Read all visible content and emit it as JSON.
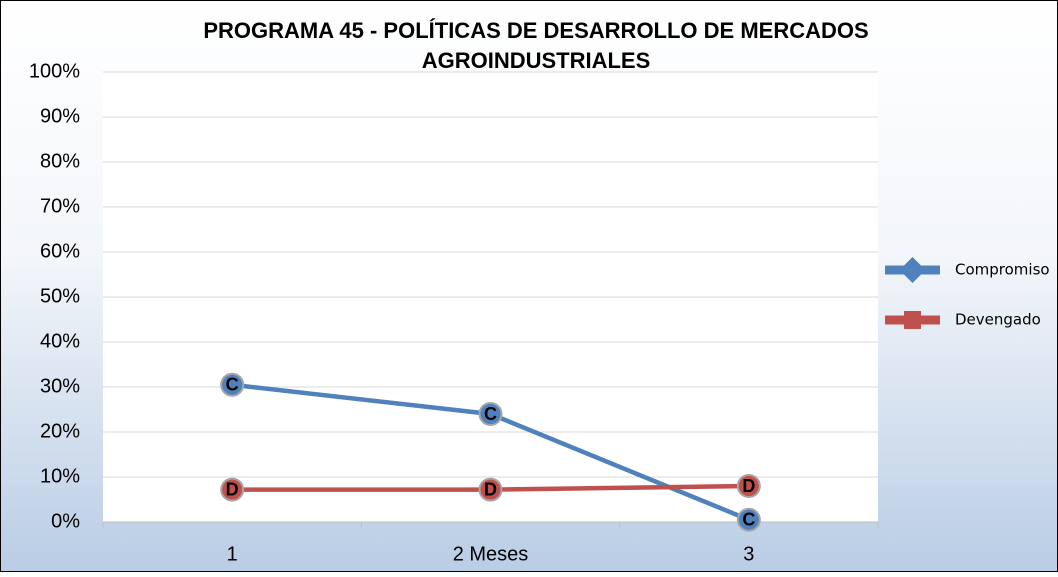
{
  "chart_data": {
    "type": "line",
    "title": [
      "PROGRAMA 45 - POLÍTICAS DE DESARROLLO DE MERCADOS",
      "AGROINDUSTRIALES"
    ],
    "categories": [
      "1",
      "2 Meses",
      "3"
    ],
    "series": [
      {
        "name": "Compromiso",
        "color": "#4f81bd",
        "marker_label": "C",
        "values": [
          30.5,
          24,
          0.5
        ]
      },
      {
        "name": "Devengado",
        "color": "#c0504d",
        "marker_label": "D",
        "values": [
          7.2,
          7.2,
          8
        ]
      }
    ],
    "ylim": [
      0,
      100
    ],
    "yticks": [
      {
        "value": 0,
        "label": "0%"
      },
      {
        "value": 10,
        "label": "10%"
      },
      {
        "value": 20,
        "label": "20%"
      },
      {
        "value": 30,
        "label": "30%"
      },
      {
        "value": 40,
        "label": "40%"
      },
      {
        "value": 50,
        "label": "50%"
      },
      {
        "value": 60,
        "label": "60%"
      },
      {
        "value": 70,
        "label": "70%"
      },
      {
        "value": 80,
        "label": "80%"
      },
      {
        "value": 90,
        "label": "90%"
      },
      {
        "value": 100,
        "label": "100%"
      }
    ],
    "grid": true,
    "legend": "right"
  }
}
